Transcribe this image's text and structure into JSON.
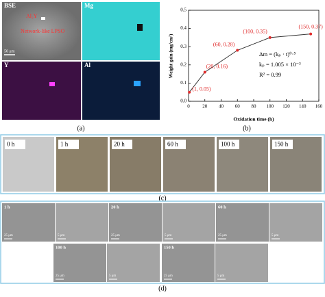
{
  "panel_a": {
    "labels": [
      "BSE",
      "Mg",
      "Y",
      "Al"
    ],
    "annotations": [
      "Al₂Y",
      "Network-like LPSO"
    ],
    "scale_bar": "50 μm",
    "caption": "(a)"
  },
  "chart_data": {
    "type": "line",
    "caption": "(b)",
    "y_label": "Weight gain (mg/cm²)",
    "x_label": "Oxidation time (h)",
    "x": [
      1,
      20,
      60,
      100,
      150
    ],
    "values": [
      0.05,
      0.16,
      0.28,
      0.35,
      0.37
    ],
    "value_labels": [
      "(1, 0.05)",
      "(20, 0.16)",
      "(60, 0.28)",
      "(100, 0.35)",
      "(150, 0.37)"
    ],
    "xlim": [
      0,
      160
    ],
    "ylim": [
      0,
      0.5
    ],
    "xticks": [
      0,
      20,
      40,
      60,
      80,
      100,
      120,
      140,
      160
    ],
    "yticks": [
      {
        "value": 0,
        "label": "0.0"
      },
      0.1,
      0.2,
      0.3,
      0.4,
      0.5
    ],
    "color": "#333333",
    "marker_color": "#e02a2a",
    "equation": [
      "Δm = (kₚ · t)⁰·⁵",
      "kₚ = 1.005 × 10⁻³",
      "R² = 0.99"
    ]
  },
  "panel_c": {
    "labels": [
      "0 h",
      "1 h",
      "20 h",
      "60 h",
      "100 h",
      "150 h"
    ],
    "caption": "(c)"
  },
  "panel_d": {
    "labels": [
      "1 h",
      "20 h",
      "60 h",
      "100 h",
      "150 h"
    ],
    "scale_bars": [
      "25 μm",
      "5 μm"
    ],
    "caption": "(d)"
  }
}
